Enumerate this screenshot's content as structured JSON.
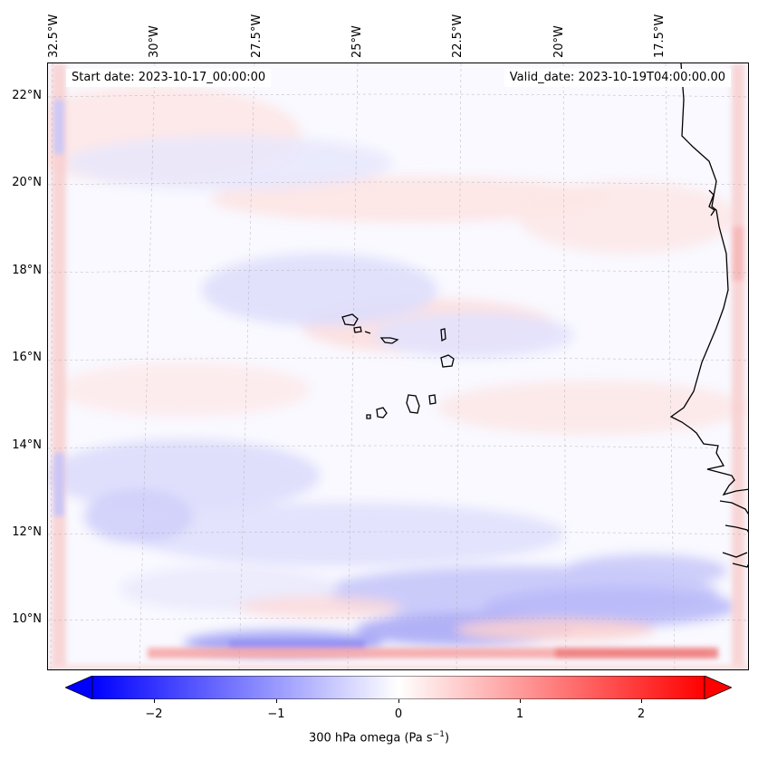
{
  "map": {
    "type": "filled-contour-map",
    "variable": "300 hPa omega",
    "start_date_text": "Start date: 2023-10-17_00:00:00",
    "valid_date_text": "Valid_date: 2023-10-19T04:00:00.00",
    "longitude_labels": [
      "32.5°W",
      "30°W",
      "27.5°W",
      "25°W",
      "22.5°W",
      "20°W",
      "17.5°W"
    ],
    "latitude_labels": [
      "22°N",
      "20°N",
      "18°N",
      "16°N",
      "14°N",
      "12°N",
      "10°N"
    ],
    "lon_range": [
      -32.6,
      -15.6
    ],
    "lat_range": [
      8.9,
      22.8
    ],
    "gridlines": true,
    "coastline_color": "#000000"
  },
  "colorbar": {
    "label": "300 hPa omega (Pa s",
    "label_sup": "−1",
    "label_close": ")",
    "ticks": [
      "−2",
      "−1",
      "0",
      "1",
      "2"
    ],
    "tick_values": [
      -2,
      -1,
      0,
      1,
      2
    ],
    "range": [
      -2.5,
      2.5
    ],
    "extend": "both",
    "cmap": "bwr",
    "low_color": "#0000ff",
    "mid_color": "#ffffff",
    "high_color": "#ff0000"
  }
}
